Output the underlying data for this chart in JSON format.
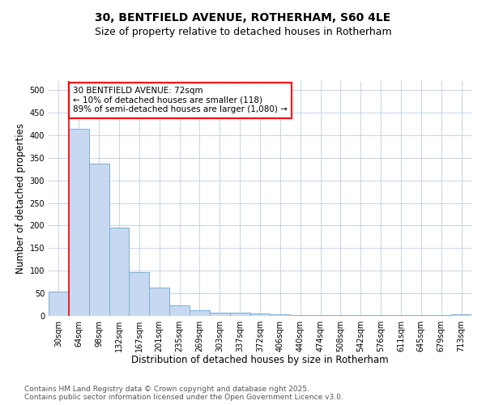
{
  "title_line1": "30, BENTFIELD AVENUE, ROTHERHAM, S60 4LE",
  "title_line2": "Size of property relative to detached houses in Rotherham",
  "xlabel": "Distribution of detached houses by size in Rotherham",
  "ylabel": "Number of detached properties",
  "categories": [
    "30sqm",
    "64sqm",
    "98sqm",
    "132sqm",
    "167sqm",
    "201sqm",
    "235sqm",
    "269sqm",
    "303sqm",
    "337sqm",
    "372sqm",
    "406sqm",
    "440sqm",
    "474sqm",
    "508sqm",
    "542sqm",
    "576sqm",
    "611sqm",
    "645sqm",
    "679sqm",
    "713sqm"
  ],
  "values": [
    54,
    415,
    337,
    195,
    97,
    63,
    23,
    13,
    8,
    8,
    5,
    3,
    2,
    1,
    1,
    1,
    1,
    1,
    1,
    2,
    3
  ],
  "bar_color": "#c6d9f1",
  "bar_edge_color": "#7bafd4",
  "red_line_index": 1,
  "annotation_text": "30 BENTFIELD AVENUE: 72sqm\n← 10% of detached houses are smaller (118)\n89% of semi-detached houses are larger (1,080) →",
  "annotation_box_color": "white",
  "annotation_box_edge_color": "red",
  "ylim": [
    0,
    520
  ],
  "yticks": [
    0,
    50,
    100,
    150,
    200,
    250,
    300,
    350,
    400,
    450,
    500
  ],
  "grid_color": "#c8d4e8",
  "background_color": "#ffffff",
  "footer_text": "Contains HM Land Registry data © Crown copyright and database right 2025.\nContains public sector information licensed under the Open Government Licence v3.0.",
  "title_fontsize": 10,
  "subtitle_fontsize": 9,
  "axis_label_fontsize": 8.5,
  "tick_fontsize": 7,
  "annotation_fontsize": 7.5,
  "footer_fontsize": 6.5
}
